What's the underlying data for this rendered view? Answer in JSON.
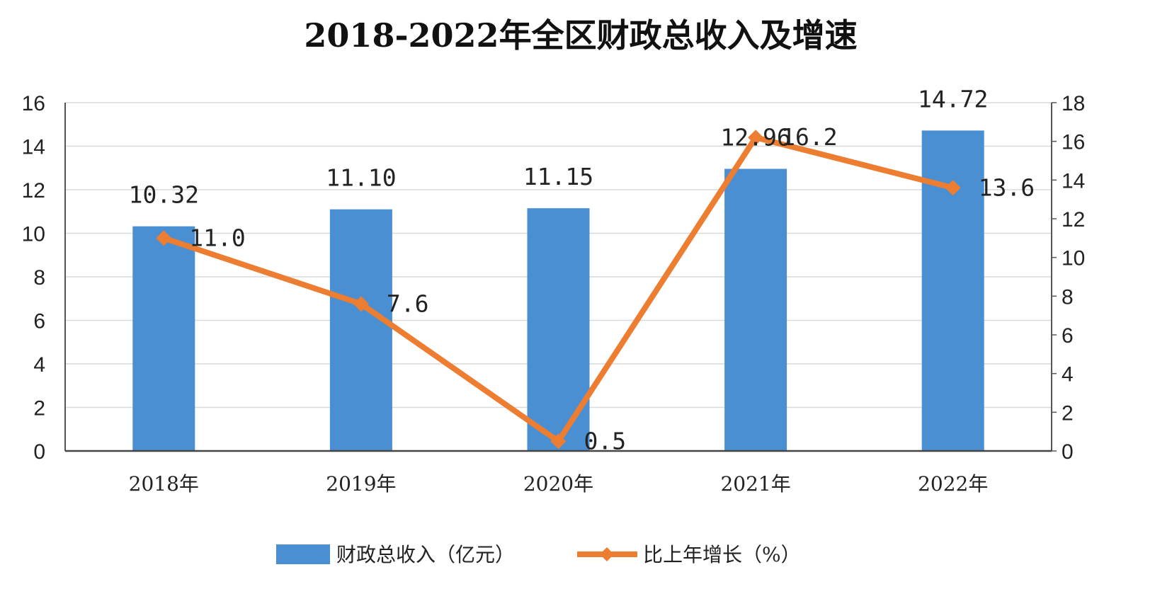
{
  "chart_data": {
    "type": "bar",
    "title": "2018-2022年全区财政总收入及增速",
    "categories": [
      "2018年",
      "2019年",
      "2020年",
      "2021年",
      "2022年"
    ],
    "series": [
      {
        "name": "财政总收入（亿元）",
        "type": "bar",
        "axis": "left",
        "values": [
          10.32,
          11.1,
          11.15,
          12.96,
          14.72
        ],
        "labels": [
          "10.32",
          "11.10",
          "11.15",
          "12.96",
          "14.72"
        ],
        "color": "#4a8fd1"
      },
      {
        "name": "比上年增长（%）",
        "type": "line",
        "axis": "right",
        "values": [
          11.0,
          7.6,
          0.5,
          16.2,
          13.6
        ],
        "labels": [
          "11.0",
          "7.6",
          "0.5",
          "16.2",
          "13.6"
        ],
        "color": "#ed7d31"
      }
    ],
    "y_left": {
      "range": [
        0,
        16
      ],
      "ticks": [
        "0",
        "2",
        "4",
        "6",
        "8",
        "10",
        "12",
        "14",
        "16"
      ]
    },
    "y_right": {
      "range": [
        0,
        18
      ],
      "ticks": [
        "0",
        "2",
        "4",
        "6",
        "8",
        "10",
        "12",
        "14",
        "16",
        "18"
      ]
    },
    "xlabel": "",
    "ylabel": "",
    "grid": true,
    "legend_position": "bottom"
  }
}
